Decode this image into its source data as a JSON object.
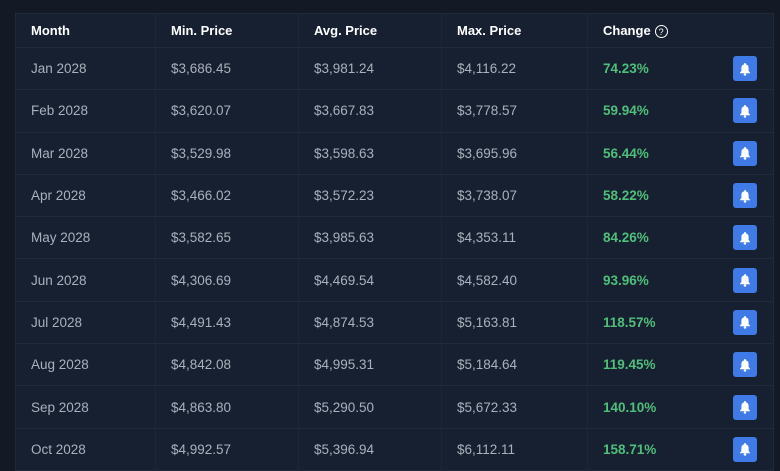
{
  "columns": [
    "Month",
    "Min. Price",
    "Avg. Price",
    "Max. Price",
    "Change"
  ],
  "help_icon": "?",
  "colors": {
    "positive": "#4fbf7a",
    "bell_button": "#3f7ae6"
  },
  "rows": [
    {
      "month": "Jan 2028",
      "min": "$3,686.45",
      "avg": "$3,981.24",
      "max": "$4,116.22",
      "change": "74.23%"
    },
    {
      "month": "Feb 2028",
      "min": "$3,620.07",
      "avg": "$3,667.83",
      "max": "$3,778.57",
      "change": "59.94%"
    },
    {
      "month": "Mar 2028",
      "min": "$3,529.98",
      "avg": "$3,598.63",
      "max": "$3,695.96",
      "change": "56.44%"
    },
    {
      "month": "Apr 2028",
      "min": "$3,466.02",
      "avg": "$3,572.23",
      "max": "$3,738.07",
      "change": "58.22%"
    },
    {
      "month": "May 2028",
      "min": "$3,582.65",
      "avg": "$3,985.63",
      "max": "$4,353.11",
      "change": "84.26%"
    },
    {
      "month": "Jun 2028",
      "min": "$4,306.69",
      "avg": "$4,469.54",
      "max": "$4,582.40",
      "change": "93.96%"
    },
    {
      "month": "Jul 2028",
      "min": "$4,491.43",
      "avg": "$4,874.53",
      "max": "$5,163.81",
      "change": "118.57%"
    },
    {
      "month": "Aug 2028",
      "min": "$4,842.08",
      "avg": "$4,995.31",
      "max": "$5,184.64",
      "change": "119.45%"
    },
    {
      "month": "Sep 2028",
      "min": "$4,863.80",
      "avg": "$5,290.50",
      "max": "$5,672.33",
      "change": "140.10%"
    },
    {
      "month": "Oct 2028",
      "min": "$4,992.57",
      "avg": "$5,396.94",
      "max": "$6,112.11",
      "change": "158.71%"
    }
  ]
}
